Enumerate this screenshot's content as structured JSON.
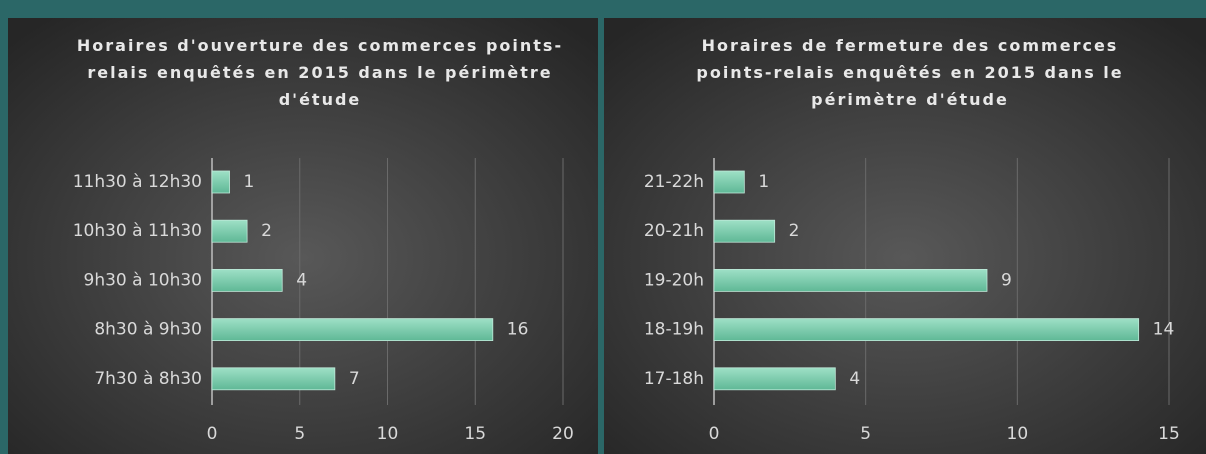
{
  "chart_data": [
    {
      "type": "bar",
      "orientation": "horizontal",
      "title": "Horaires d'ouverture des commerces points-relais enquêtés en 2015 dans le périmètre d'étude",
      "categories": [
        "11h30 à 12h30",
        "10h30 à 11h30",
        "9h30 à 10h30",
        "8h30 à 9h30",
        "7h30 à 8h30"
      ],
      "values": [
        1,
        2,
        4,
        16,
        7
      ],
      "color": "#72c9a8",
      "xlim": [
        0,
        20
      ],
      "xticks": [
        0,
        5,
        10,
        15,
        20
      ],
      "grid": true
    },
    {
      "type": "bar",
      "orientation": "horizontal",
      "title": "Horaires de fermeture des commerces points-relais enquêtés en 2015 dans le périmètre d'étude",
      "categories": [
        "21-22h",
        "20-21h",
        "19-20h",
        "18-19h",
        "17-18h"
      ],
      "values": [
        1,
        2,
        9,
        14,
        4
      ],
      "color": "#72c9a8",
      "xlim": [
        0,
        15
      ],
      "xticks": [
        0,
        5,
        10,
        15
      ],
      "grid": true
    }
  ]
}
